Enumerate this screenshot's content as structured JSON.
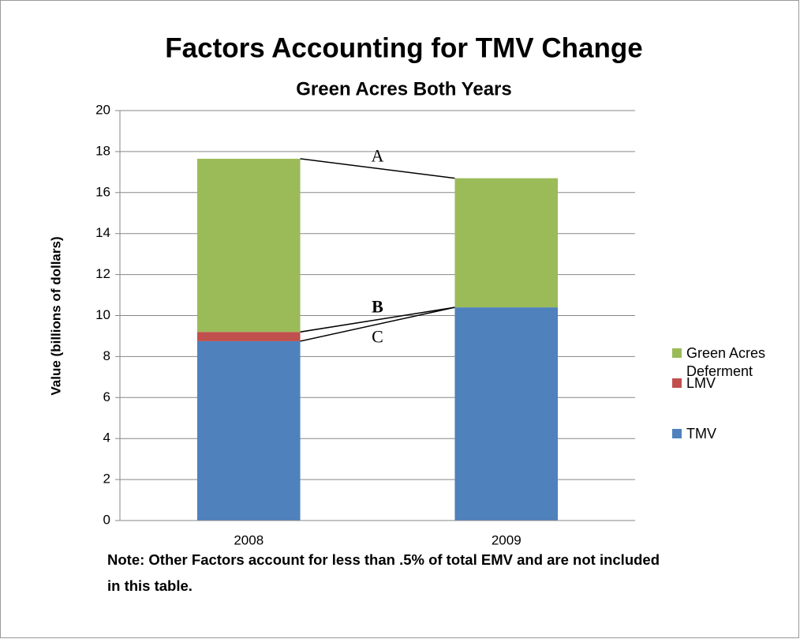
{
  "chart_data": {
    "type": "stacked_bar",
    "title": "Factors Accounting for TMV Change",
    "subtitle": "Green Acres Both Years",
    "y_label": "Value (billions of dollars)",
    "categories": [
      "2008",
      "2009"
    ],
    "series": [
      {
        "name": "TMV",
        "color": "#4f81bd",
        "values": [
          8.75,
          10.4
        ]
      },
      {
        "name": "LMV",
        "color": "#c0504d",
        "values": [
          0.45,
          0
        ]
      },
      {
        "name": "Green Acres Deferment",
        "color": "#9bbb59",
        "values": [
          8.45,
          6.3
        ]
      }
    ],
    "ylim": [
      0,
      20
    ],
    "yticks": [
      0,
      2,
      4,
      6,
      8,
      10,
      12,
      14,
      16,
      18,
      20
    ],
    "grid": true,
    "legend": "right",
    "annotations": [
      "A",
      "B",
      "C"
    ],
    "note": "Note: Other Factors account for less than .5% of total EMV and are not included in this table."
  }
}
